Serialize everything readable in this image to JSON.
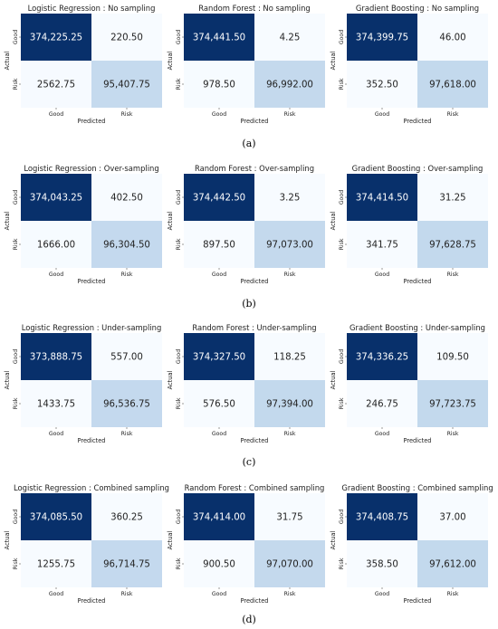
{
  "figure": {
    "panels": [
      {
        "label": "(a)"
      },
      {
        "label": "(b)"
      },
      {
        "label": "(c)"
      },
      {
        "label": "(d)"
      }
    ]
  },
  "chart_data": [
    {
      "type": "heatmap",
      "title": "Logistic Regression : No sampling",
      "xlabel": "Predicted",
      "ylabel": "Actual",
      "x_categories": [
        "Good",
        "Risk"
      ],
      "y_categories": [
        "Good",
        "Risk"
      ],
      "values": [
        [
          374225.25,
          220.5
        ],
        [
          2562.75,
          95407.75
        ]
      ],
      "value_labels": [
        [
          "374,225.25",
          "220.50"
        ],
        [
          "2562.75",
          "95,407.75"
        ]
      ]
    },
    {
      "type": "heatmap",
      "title": "Random Forest : No sampling",
      "xlabel": "Predicted",
      "ylabel": "Actual",
      "x_categories": [
        "Good",
        "Risk"
      ],
      "y_categories": [
        "Good",
        "Risk"
      ],
      "values": [
        [
          374441.5,
          4.25
        ],
        [
          978.5,
          96992.0
        ]
      ],
      "value_labels": [
        [
          "374,441.50",
          "4.25"
        ],
        [
          "978.50",
          "96,992.00"
        ]
      ]
    },
    {
      "type": "heatmap",
      "title": "Gradient Boosting : No sampling",
      "xlabel": "Predicted",
      "ylabel": "Actual",
      "x_categories": [
        "Good",
        "Risk"
      ],
      "y_categories": [
        "Good",
        "Risk"
      ],
      "values": [
        [
          374399.75,
          46.0
        ],
        [
          352.5,
          97618.0
        ]
      ],
      "value_labels": [
        [
          "374,399.75",
          "46.00"
        ],
        [
          "352.50",
          "97,618.00"
        ]
      ]
    },
    {
      "type": "heatmap",
      "title": "Logistic Regression : Over-sampling",
      "xlabel": "Predicted",
      "ylabel": "Actual",
      "x_categories": [
        "Good",
        "Risk"
      ],
      "y_categories": [
        "Good",
        "Risk"
      ],
      "values": [
        [
          374043.25,
          402.5
        ],
        [
          1666.0,
          96304.5
        ]
      ],
      "value_labels": [
        [
          "374,043.25",
          "402.50"
        ],
        [
          "1666.00",
          "96,304.50"
        ]
      ]
    },
    {
      "type": "heatmap",
      "title": "Random Forest : Over-sampling",
      "xlabel": "Predicted",
      "ylabel": "Actual",
      "x_categories": [
        "Good",
        "Risk"
      ],
      "y_categories": [
        "Good",
        "Risk"
      ],
      "values": [
        [
          374442.5,
          3.25
        ],
        [
          897.5,
          97073.0
        ]
      ],
      "value_labels": [
        [
          "374,442.50",
          "3.25"
        ],
        [
          "897.50",
          "97,073.00"
        ]
      ]
    },
    {
      "type": "heatmap",
      "title": "Gradient Boosting : Over-sampling",
      "xlabel": "Predicted",
      "ylabel": "Actual",
      "x_categories": [
        "Good",
        "Risk"
      ],
      "y_categories": [
        "Good",
        "Risk"
      ],
      "values": [
        [
          374414.5,
          31.25
        ],
        [
          341.75,
          97628.75
        ]
      ],
      "value_labels": [
        [
          "374,414.50",
          "31.25"
        ],
        [
          "341.75",
          "97,628.75"
        ]
      ]
    },
    {
      "type": "heatmap",
      "title": "Logistic Regression : Under-sampling",
      "xlabel": "Predicted",
      "ylabel": "Actual",
      "x_categories": [
        "Good",
        "Risk"
      ],
      "y_categories": [
        "Good",
        "Risk"
      ],
      "values": [
        [
          373888.75,
          557.0
        ],
        [
          1433.75,
          96536.75
        ]
      ],
      "value_labels": [
        [
          "373,888.75",
          "557.00"
        ],
        [
          "1433.75",
          "96,536.75"
        ]
      ]
    },
    {
      "type": "heatmap",
      "title": "Random Forest : Under-sampling",
      "xlabel": "Predicted",
      "ylabel": "Actual",
      "x_categories": [
        "Good",
        "Risk"
      ],
      "y_categories": [
        "Good",
        "Risk"
      ],
      "values": [
        [
          374327.5,
          118.25
        ],
        [
          576.5,
          97394.0
        ]
      ],
      "value_labels": [
        [
          "374,327.50",
          "118.25"
        ],
        [
          "576.50",
          "97,394.00"
        ]
      ]
    },
    {
      "type": "heatmap",
      "title": "Gradient Boosting : Under-sampling",
      "xlabel": "Predicted",
      "ylabel": "Actual",
      "x_categories": [
        "Good",
        "Risk"
      ],
      "y_categories": [
        "Good",
        "Risk"
      ],
      "values": [
        [
          374336.25,
          109.5
        ],
        [
          246.75,
          97723.75
        ]
      ],
      "value_labels": [
        [
          "374,336.25",
          "109.50"
        ],
        [
          "246.75",
          "97,723.75"
        ]
      ]
    },
    {
      "type": "heatmap",
      "title": "Logistic Regression : Combined sampling",
      "xlabel": "Predicted",
      "ylabel": "Actual",
      "x_categories": [
        "Good",
        "Risk"
      ],
      "y_categories": [
        "Good",
        "Risk"
      ],
      "values": [
        [
          374085.5,
          360.25
        ],
        [
          1255.75,
          96714.75
        ]
      ],
      "value_labels": [
        [
          "374,085.50",
          "360.25"
        ],
        [
          "1255.75",
          "96,714.75"
        ]
      ]
    },
    {
      "type": "heatmap",
      "title": "Random Forest : Combined sampling",
      "xlabel": "Predicted",
      "ylabel": "Actual",
      "x_categories": [
        "Good",
        "Risk"
      ],
      "y_categories": [
        "Good",
        "Risk"
      ],
      "values": [
        [
          374414.0,
          31.75
        ],
        [
          900.5,
          97070.0
        ]
      ],
      "value_labels": [
        [
          "374,414.00",
          "31.75"
        ],
        [
          "900.50",
          "97,070.00"
        ]
      ]
    },
    {
      "type": "heatmap",
      "title": "Gradient Boosting : Combined sampling",
      "xlabel": "Predicted",
      "ylabel": "Actual",
      "x_categories": [
        "Good",
        "Risk"
      ],
      "y_categories": [
        "Good",
        "Risk"
      ],
      "values": [
        [
          374408.75,
          37.0
        ],
        [
          358.5,
          97612.0
        ]
      ],
      "value_labels": [
        [
          "374,408.75",
          "37.00"
        ],
        [
          "358.50",
          "97,612.00"
        ]
      ]
    }
  ],
  "colors": {
    "high": "#08306b",
    "mid": "#c6dbef",
    "low": "#f7fbff",
    "text_on_dark": "#ffffff",
    "text_on_light": "#222222"
  }
}
